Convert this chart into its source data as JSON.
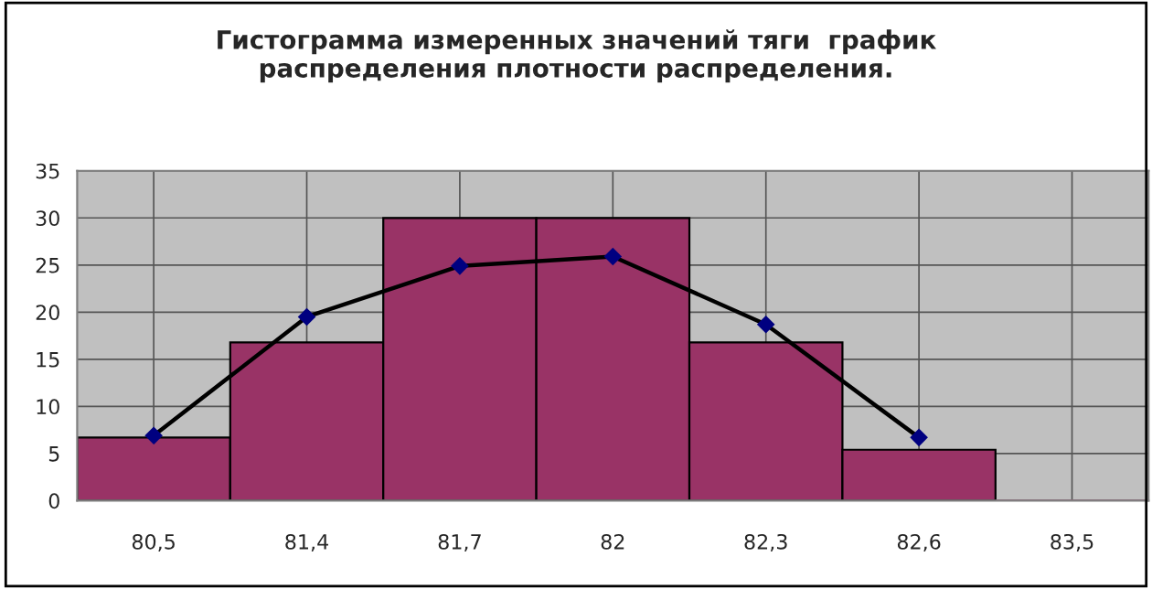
{
  "chart_data": {
    "type": "bar",
    "title": "Гистограмма измеренных значений тяги  график\nраспределения плотности распределения.",
    "categories": [
      "80,5",
      "81,4",
      "81,7",
      "82",
      "82,3",
      "82,6",
      "83,5"
    ],
    "series": [
      {
        "color": "#993366",
        "values": [
          6.7,
          16.8,
          30,
          30,
          16.8,
          5.4,
          0
        ]
      },
      {
        "type": "line",
        "color": "#000000",
        "values": [
          6.9,
          19.5,
          24.9,
          25.9,
          18.7,
          6.7,
          null
        ]
      }
    ],
    "ylim": [
      0,
      35
    ],
    "yticks": [
      0,
      5,
      10,
      15,
      20,
      25,
      30,
      35
    ],
    "grid": true,
    "marker": "diamond",
    "line_style": "solid"
  }
}
